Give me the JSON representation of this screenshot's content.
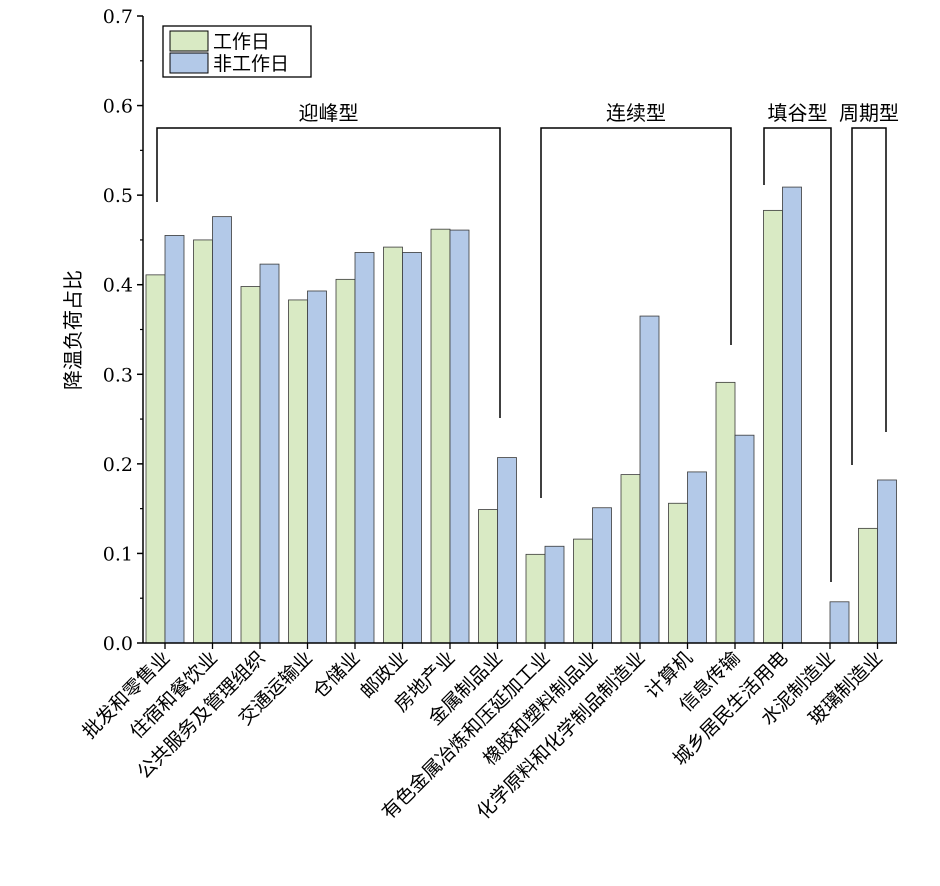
{
  "chart_data": {
    "type": "bar",
    "ylabel": "降温负荷占比",
    "xlabel": "",
    "ylim": [
      0,
      0.7
    ],
    "yticks": [
      "0.0",
      "0.1",
      "0.2",
      "0.3",
      "0.4",
      "0.5",
      "0.6",
      "0.7"
    ],
    "categories": [
      "批发和零售业",
      "住宿和餐饮业",
      "公共服务及管理组织",
      "交通运输业",
      "仓储业",
      "邮政业",
      "房地产业",
      "金属制品业",
      "有色金属冶炼和压延加工业",
      "橡胶和塑料制品业",
      "化学原料和化学制品制造业",
      "计算机",
      "信息传输",
      "城乡居民生活用电",
      "水泥制造业",
      "玻璃制造业"
    ],
    "series": [
      {
        "name": "工作日",
        "color": "#d9eac4",
        "values": [
          0.411,
          0.45,
          0.398,
          0.383,
          0.406,
          0.442,
          0.462,
          0.149,
          0.099,
          0.116,
          0.188,
          0.156,
          0.291,
          0.483,
          0.0,
          0.128
        ]
      },
      {
        "name": "非工作日",
        "color": "#b3c9e8",
        "values": [
          0.455,
          0.476,
          0.423,
          0.393,
          0.436,
          0.436,
          0.461,
          0.207,
          0.108,
          0.151,
          0.365,
          0.191,
          0.232,
          0.509,
          0.046,
          0.182
        ]
      }
    ],
    "legend_position": "top-left",
    "grid": false,
    "groups": [
      {
        "label": "迎峰型",
        "start": 0,
        "end": 7
      },
      {
        "label": "连续型",
        "start": 8,
        "end": 12
      },
      {
        "label": "填谷型",
        "start": 13,
        "end": 14
      },
      {
        "label": "周期型",
        "start": 15,
        "end": 15
      }
    ]
  }
}
